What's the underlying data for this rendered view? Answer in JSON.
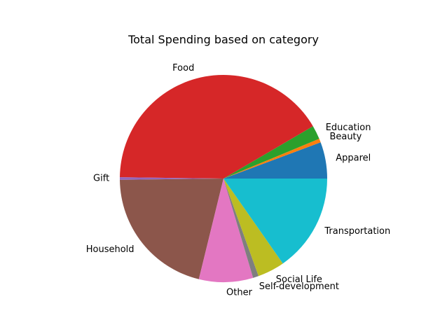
{
  "chart_data": {
    "type": "pie",
    "title": "Total Spending based on category",
    "start_angle_deg": 0,
    "direction": "counterclockwise",
    "slices": [
      {
        "label": "Apparel",
        "value": 5.8,
        "color": "#1f77b4"
      },
      {
        "label": "Beauty",
        "value": 0.6,
        "color": "#ff7f0e"
      },
      {
        "label": "Education",
        "value": 2.2,
        "color": "#2ca02c"
      },
      {
        "label": "Food",
        "value": 42.2,
        "color": "#d62728"
      },
      {
        "label": "Gift",
        "value": 0.4,
        "color": "#9467bd"
      },
      {
        "label": "Household",
        "value": 21.4,
        "color": "#8c564b"
      },
      {
        "label": "Other",
        "value": 8.6,
        "color": "#e377c2"
      },
      {
        "label": "Self-development",
        "value": 0.9,
        "color": "#7f7f7f"
      },
      {
        "label": "Social Life",
        "value": 4.3,
        "color": "#bcbd22"
      },
      {
        "label": "Transportation",
        "value": 15.6,
        "color": "#17becf"
      }
    ]
  }
}
